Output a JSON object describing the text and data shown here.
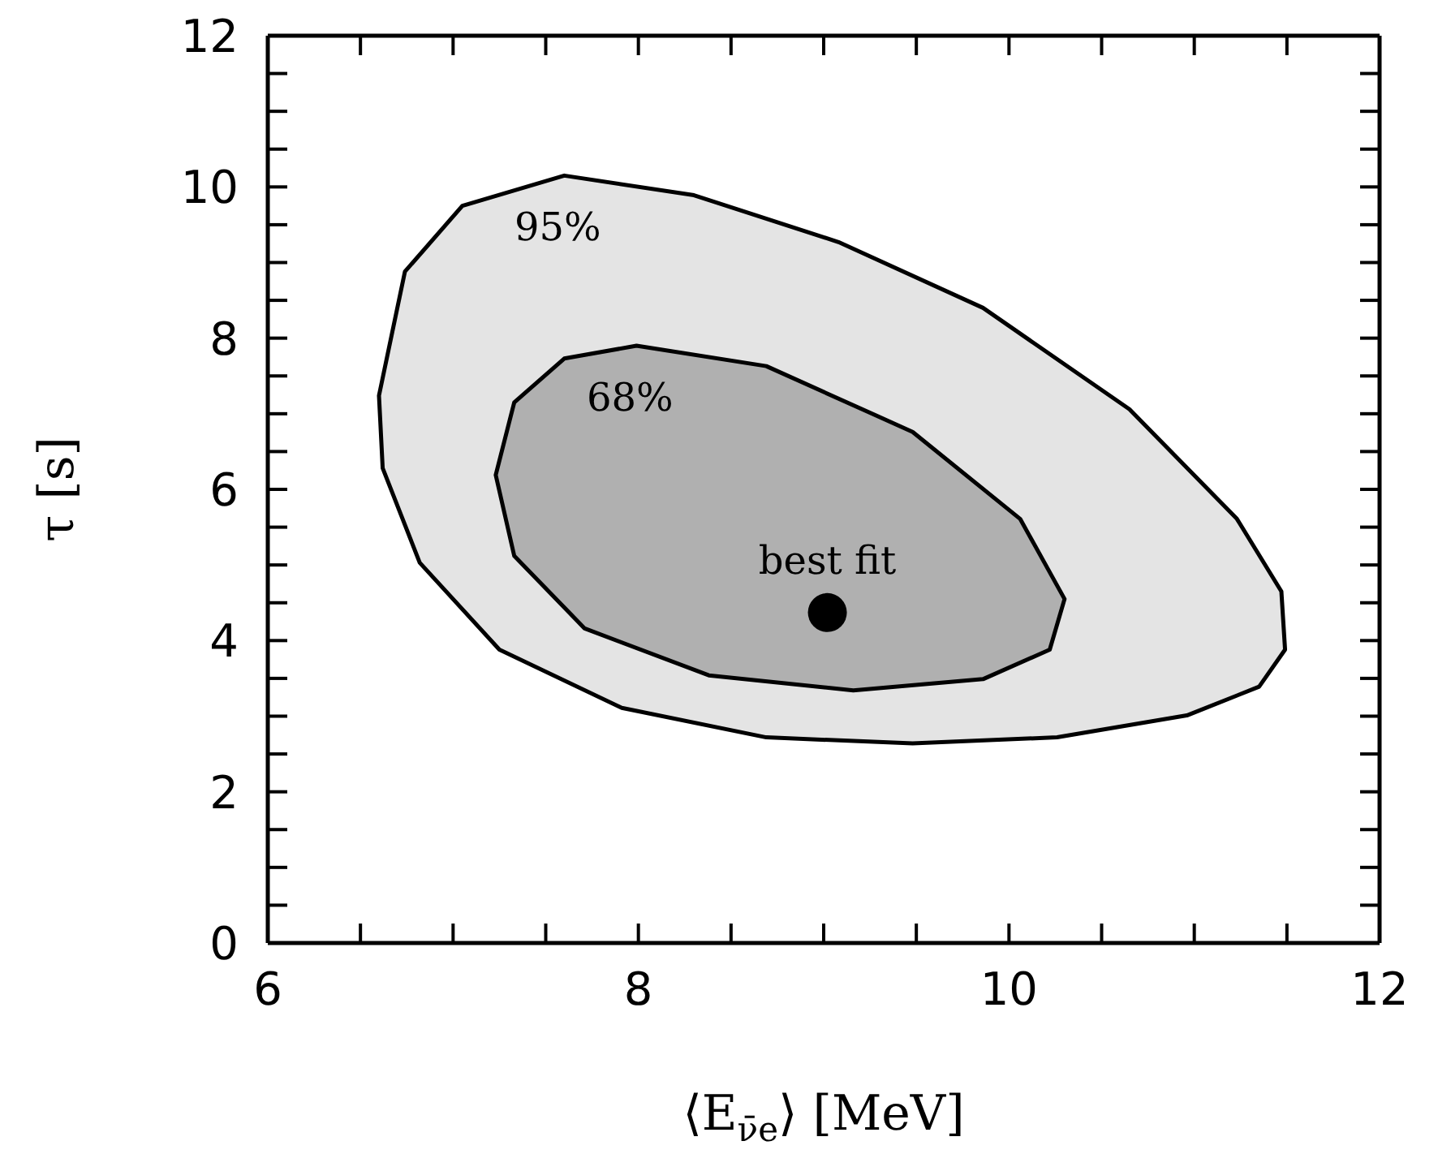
{
  "chart_data": {
    "type": "area",
    "xlabel": "⟨E$_{ν̄e}$⟩ [MeV]",
    "ylabel": "τ [s]",
    "xlim": [
      6,
      12
    ],
    "xticks": [
      6,
      {
        "value": 6.5,
        "label": null
      },
      {
        "value": 7,
        "label": null
      },
      {
        "value": 7.5,
        "label": null
      },
      8,
      {
        "value": 8.5,
        "label": null
      },
      {
        "value": 9,
        "label": null
      },
      {
        "value": 9.5,
        "label": null
      },
      10,
      {
        "value": 10.5,
        "label": null
      },
      {
        "value": 11,
        "label": null
      },
      {
        "value": 11.5,
        "label": null
      },
      12
    ],
    "ylim": [
      0,
      12
    ],
    "yticks": [
      0,
      {
        "value": 0.5,
        "label": null
      },
      {
        "value": 1,
        "label": null
      },
      {
        "value": 1.5,
        "label": null
      },
      2,
      {
        "value": 2.5,
        "label": null
      },
      {
        "value": 3,
        "label": null
      },
      {
        "value": 3.5,
        "label": null
      },
      4,
      {
        "value": 4.5,
        "label": null
      },
      {
        "value": 5,
        "label": null
      },
      {
        "value": 5.5,
        "label": null
      },
      6,
      {
        "value": 6.5,
        "label": null
      },
      {
        "value": 7,
        "label": null
      },
      {
        "value": 7.5,
        "label": null
      },
      8,
      {
        "value": 8.5,
        "label": null
      },
      {
        "value": 9,
        "label": null
      },
      {
        "value": 9.5,
        "label": null
      },
      10,
      {
        "value": 10.5,
        "label": null
      },
      {
        "value": 11,
        "label": null
      },
      {
        "value": 11.5,
        "label": null
      },
      12
    ],
    "series": [
      {
        "name": "95%",
        "color": "#e4e4e4",
        "x": [
          6.6,
          6.74,
          7.05,
          7.6,
          8.3,
          9.08,
          9.86,
          10.65,
          11.23,
          11.47,
          11.49,
          11.35,
          10.96,
          10.26,
          9.48,
          8.69,
          7.91,
          7.25,
          6.82,
          6.62
        ],
        "values": [
          7.24,
          8.88,
          9.75,
          10.15,
          9.89,
          9.27,
          8.4,
          7.06,
          5.61,
          4.65,
          3.88,
          3.39,
          3.01,
          2.72,
          2.64,
          2.72,
          3.11,
          3.88,
          5.03,
          6.28
        ]
      },
      {
        "name": "68%",
        "color": "#b0b0b0",
        "x": [
          7.23,
          7.33,
          7.6,
          7.99,
          8.69,
          9.48,
          10.06,
          10.3,
          10.22,
          9.86,
          9.16,
          8.38,
          7.71,
          7.33
        ],
        "values": [
          6.19,
          7.15,
          7.73,
          7.9,
          7.63,
          6.76,
          5.61,
          4.55,
          3.88,
          3.49,
          3.34,
          3.54,
          4.16,
          5.12
        ]
      },
      {
        "name": "best fit",
        "type": "scatter",
        "color": "#000000",
        "x": [
          9.02
        ],
        "values": [
          4.37
        ]
      }
    ]
  }
}
